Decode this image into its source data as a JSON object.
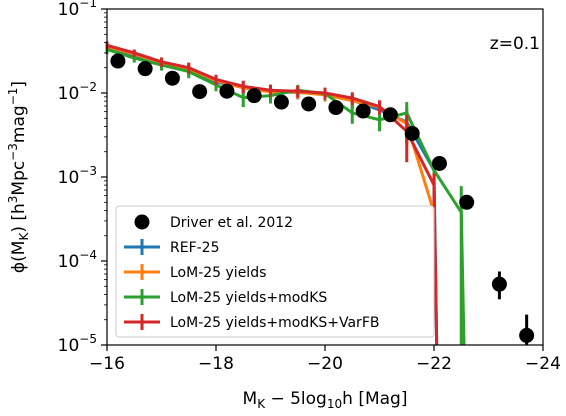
{
  "chart_data": {
    "type": "line",
    "annotation": "z=0.1",
    "xlabel_main": "M",
    "xlabel_sub": "K",
    "xlabel_rest": " − 5log",
    "xlabel_sub2": "10",
    "xlabel_tail": "h [Mag]",
    "ylabel_main": "ϕ(M",
    "ylabel_sub": "K",
    "ylabel_rest": ") [h",
    "ylabel_sup1": "3",
    "ylabel_mid": "Mpc",
    "ylabel_sup2": "−3",
    "ylabel_mid2": "mag",
    "ylabel_sup3": "−1",
    "ylabel_end": "]",
    "xlim": [
      -16,
      -24
    ],
    "ylim": [
      1e-05,
      0.1
    ],
    "yscale": "log",
    "x_ticks": [
      {
        "value": -16,
        "label": "−16"
      },
      {
        "value": -18,
        "label": "−18"
      },
      {
        "value": -20,
        "label": "−20"
      },
      {
        "value": -22,
        "label": "−22"
      },
      {
        "value": -24,
        "label": "−24"
      }
    ],
    "y_ticks": [
      {
        "value": 1e-05,
        "base": "10",
        "exp": "−5"
      },
      {
        "value": 0.0001,
        "base": "10",
        "exp": "−4"
      },
      {
        "value": 0.001,
        "base": "10",
        "exp": "−3"
      },
      {
        "value": 0.01,
        "base": "10",
        "exp": "−2"
      },
      {
        "value": 0.1,
        "base": "10",
        "exp": "−1"
      }
    ],
    "legend_position": "lower-left",
    "observations": {
      "name": "Driver et al. 2012",
      "color": "#000000",
      "x": [
        -16.2,
        -16.7,
        -17.2,
        -17.7,
        -18.2,
        -18.7,
        -19.2,
        -19.7,
        -20.2,
        -20.7,
        -21.2,
        -21.6,
        -22.1,
        -22.6,
        -23.2,
        -23.7
      ],
      "y": [
        0.024,
        0.0195,
        0.015,
        0.0104,
        0.0105,
        0.0093,
        0.0078,
        0.0074,
        0.0067,
        0.0061,
        0.0055,
        0.0033,
        0.00145,
        0.0005,
        5.3e-05,
        1.3e-05
      ],
      "yerr_low": [
        0.0,
        0.0,
        0.0,
        0.0,
        0.0,
        0.0,
        0.0,
        0.0,
        0.0,
        0.0,
        0.0,
        0.0,
        0.0,
        0.0,
        1.8e-05,
        3e-06
      ],
      "yerr_high": [
        0.0,
        0.0,
        0.0,
        0.0,
        0.0,
        0.0,
        0.0,
        0.0,
        0.0,
        0.0,
        0.0,
        0.0,
        0.0,
        0.0,
        2.2e-05,
        1e-05
      ]
    },
    "series": [
      {
        "name": "REF-25",
        "color": "#1f77b4",
        "x": [
          -16.0,
          -16.5,
          -17.0,
          -17.5,
          -18.0,
          -18.5,
          -19.0,
          -19.5,
          -20.0,
          -20.5,
          -21.0,
          -21.5,
          -22.0,
          -22.05
        ],
        "y": [
          0.035,
          0.028,
          0.022,
          0.019,
          0.0135,
          0.0118,
          0.0106,
          0.0101,
          0.0098,
          0.0082,
          0.0063,
          0.0045,
          0.0012,
          1e-05
        ],
        "err": [
          0.004,
          0.003,
          0.003,
          0.003,
          0.002,
          0.002,
          0.0018,
          0.0017,
          0.0016,
          0.0015,
          0.0013,
          0.002,
          0.0004,
          0
        ]
      },
      {
        "name": "LoM-25 yields",
        "color": "#ff7f0e",
        "x": [
          -16.0,
          -16.5,
          -17.0,
          -17.5,
          -18.0,
          -18.5,
          -19.0,
          -19.5,
          -20.0,
          -20.5,
          -21.0,
          -21.5,
          -22.0
        ],
        "y": [
          0.036,
          0.029,
          0.023,
          0.0195,
          0.014,
          0.0115,
          0.0103,
          0.0102,
          0.0095,
          0.0081,
          0.0068,
          0.0043,
          0.00038
        ],
        "err": [
          0.004,
          0.003,
          0.003,
          0.003,
          0.002,
          0.002,
          0.0018,
          0.0017,
          0.0016,
          0.0015,
          0.0013,
          0.002,
          0.0001
        ]
      },
      {
        "name": "LoM-25 yields+modKS",
        "color": "#2ca02c",
        "x": [
          -16.0,
          -16.5,
          -17.0,
          -17.5,
          -18.0,
          -18.5,
          -19.0,
          -19.5,
          -20.0,
          -20.5,
          -21.0,
          -21.5,
          -22.0,
          -22.5,
          -22.55
        ],
        "y": [
          0.033,
          0.026,
          0.0215,
          0.018,
          0.0125,
          0.0088,
          0.0093,
          0.0108,
          0.0098,
          0.0058,
          0.0048,
          0.0058,
          0.0012,
          0.00038,
          1e-05
        ],
        "err": [
          0.004,
          0.003,
          0.003,
          0.003,
          0.002,
          0.002,
          0.0018,
          0.0017,
          0.0016,
          0.0015,
          0.0013,
          0.002,
          0.0004,
          0.0004,
          0
        ]
      },
      {
        "name": "LoM-25 yields+modKS+VarFB",
        "color": "#d62728",
        "x": [
          -16.0,
          -16.5,
          -17.0,
          -17.5,
          -18.0,
          -18.5,
          -19.0,
          -19.5,
          -20.0,
          -20.5,
          -21.0,
          -21.5,
          -22.0,
          -22.05
        ],
        "y": [
          0.037,
          0.03,
          0.0235,
          0.02,
          0.0145,
          0.012,
          0.0108,
          0.0105,
          0.01,
          0.0087,
          0.0069,
          0.0035,
          0.0008,
          1e-05
        ],
        "err": [
          0.004,
          0.003,
          0.003,
          0.003,
          0.002,
          0.002,
          0.0018,
          0.0017,
          0.0016,
          0.0015,
          0.0013,
          0.002,
          0.0003,
          0
        ]
      }
    ]
  }
}
